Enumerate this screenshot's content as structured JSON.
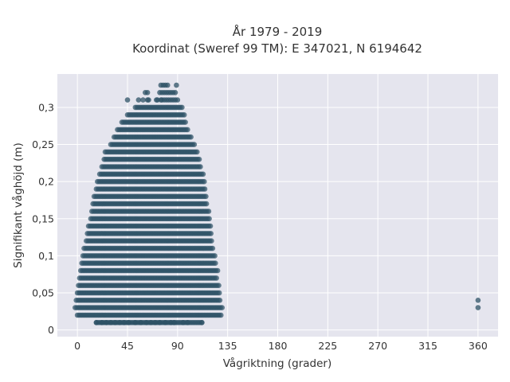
{
  "chart_data": {
    "type": "scatter",
    "title_line1": "År 1979 - 2019",
    "title_line2": "Koordinat (Sweref 99 TM): E 347021, N 6194642",
    "xlabel": "Vågriktning (grader)",
    "ylabel": "Signifikant våghöjd (m)",
    "xlim": [
      -18,
      378
    ],
    "ylim": [
      -0.009,
      0.345
    ],
    "x_ticks": [
      0,
      45,
      90,
      135,
      180,
      225,
      270,
      315,
      360
    ],
    "x_tick_labels": [
      "0",
      "45",
      "90",
      "135",
      "180",
      "225",
      "270",
      "315",
      "360"
    ],
    "y_ticks": [
      0,
      0.05,
      0.1,
      0.15,
      0.2,
      0.25,
      0.3
    ],
    "y_tick_labels": [
      "0",
      "0,05",
      "0,1",
      "0,15",
      "0,2",
      "0,25",
      "0,3"
    ],
    "marker_color": "#2e5266",
    "background_color": "#e5e5ee",
    "grid": true,
    "y_step": 0.01,
    "envelope": [
      {
        "y": 0.01,
        "x_min": 17,
        "x_max": 112
      },
      {
        "y": 0.02,
        "x_min": 0,
        "x_max": 129
      },
      {
        "y": 0.03,
        "x_min": -2,
        "x_max": 131
      },
      {
        "y": 0.04,
        "x_min": -1,
        "x_max": 129
      },
      {
        "y": 0.05,
        "x_min": 0,
        "x_max": 128
      },
      {
        "y": 0.06,
        "x_min": 1,
        "x_max": 127
      },
      {
        "y": 0.07,
        "x_min": 2,
        "x_max": 126
      },
      {
        "y": 0.08,
        "x_min": 3,
        "x_max": 126
      },
      {
        "y": 0.09,
        "x_min": 4,
        "x_max": 125
      },
      {
        "y": 0.1,
        "x_min": 5,
        "x_max": 124
      },
      {
        "y": 0.11,
        "x_min": 6,
        "x_max": 122
      },
      {
        "y": 0.12,
        "x_min": 8,
        "x_max": 121
      },
      {
        "y": 0.13,
        "x_min": 9,
        "x_max": 120
      },
      {
        "y": 0.14,
        "x_min": 10,
        "x_max": 120
      },
      {
        "y": 0.15,
        "x_min": 12,
        "x_max": 119
      },
      {
        "y": 0.16,
        "x_min": 13,
        "x_max": 118
      },
      {
        "y": 0.17,
        "x_min": 14,
        "x_max": 117
      },
      {
        "y": 0.18,
        "x_min": 15,
        "x_max": 116
      },
      {
        "y": 0.19,
        "x_min": 17,
        "x_max": 115
      },
      {
        "y": 0.2,
        "x_min": 18,
        "x_max": 114
      },
      {
        "y": 0.21,
        "x_min": 20,
        "x_max": 113
      },
      {
        "y": 0.22,
        "x_min": 22,
        "x_max": 111
      },
      {
        "y": 0.23,
        "x_min": 24,
        "x_max": 110
      },
      {
        "y": 0.24,
        "x_min": 25,
        "x_max": 108
      },
      {
        "y": 0.25,
        "x_min": 30,
        "x_max": 105
      },
      {
        "y": 0.26,
        "x_min": 33,
        "x_max": 103
      },
      {
        "y": 0.27,
        "x_min": 36,
        "x_max": 100
      },
      {
        "y": 0.28,
        "x_min": 40,
        "x_max": 98
      },
      {
        "y": 0.29,
        "x_min": 45,
        "x_max": 96
      },
      {
        "y": 0.3,
        "x_min": 52,
        "x_max": 94
      }
    ],
    "sparse_points": [
      {
        "x": 17,
        "y": 0.01
      },
      {
        "x": 22,
        "y": 0.01
      },
      {
        "x": 26,
        "y": 0.01
      },
      {
        "x": 30,
        "y": 0.01
      },
      {
        "x": 34,
        "y": 0.01
      },
      {
        "x": 38,
        "y": 0.01
      },
      {
        "x": 42,
        "y": 0.01
      },
      {
        "x": 46,
        "y": 0.01
      },
      {
        "x": 52,
        "y": 0.01
      },
      {
        "x": 57,
        "y": 0.01
      },
      {
        "x": 62,
        "y": 0.01
      },
      {
        "x": 66,
        "y": 0.01
      },
      {
        "x": 70,
        "y": 0.01
      },
      {
        "x": 74,
        "y": 0.01
      },
      {
        "x": 79,
        "y": 0.01
      },
      {
        "x": 84,
        "y": 0.01
      },
      {
        "x": 87,
        "y": 0.01
      },
      {
        "x": 95,
        "y": 0.01
      },
      {
        "x": 99,
        "y": 0.01
      },
      {
        "x": 112,
        "y": 0.01
      },
      {
        "x": 45,
        "y": 0.31
      },
      {
        "x": 55,
        "y": 0.31
      },
      {
        "x": 59,
        "y": 0.31
      },
      {
        "x": 63,
        "y": 0.31
      },
      {
        "x": 64,
        "y": 0.31
      },
      {
        "x": 71,
        "y": 0.31
      },
      {
        "x": 72,
        "y": 0.31
      },
      {
        "x": 75,
        "y": 0.31
      },
      {
        "x": 76,
        "y": 0.31
      },
      {
        "x": 78,
        "y": 0.31
      },
      {
        "x": 80,
        "y": 0.31
      },
      {
        "x": 82,
        "y": 0.31
      },
      {
        "x": 84,
        "y": 0.31
      },
      {
        "x": 86,
        "y": 0.31
      },
      {
        "x": 88,
        "y": 0.31
      },
      {
        "x": 90,
        "y": 0.31
      },
      {
        "x": 61,
        "y": 0.32
      },
      {
        "x": 63,
        "y": 0.32
      },
      {
        "x": 74,
        "y": 0.32
      },
      {
        "x": 76,
        "y": 0.32
      },
      {
        "x": 78,
        "y": 0.32
      },
      {
        "x": 80,
        "y": 0.32
      },
      {
        "x": 82,
        "y": 0.32
      },
      {
        "x": 84,
        "y": 0.32
      },
      {
        "x": 86,
        "y": 0.32
      },
      {
        "x": 88,
        "y": 0.32
      },
      {
        "x": 75,
        "y": 0.33
      },
      {
        "x": 77,
        "y": 0.33
      },
      {
        "x": 79,
        "y": 0.33
      },
      {
        "x": 81,
        "y": 0.33
      },
      {
        "x": 89,
        "y": 0.33
      },
      {
        "x": 360,
        "y": 0.03
      },
      {
        "x": 360,
        "y": 0.04
      }
    ]
  }
}
